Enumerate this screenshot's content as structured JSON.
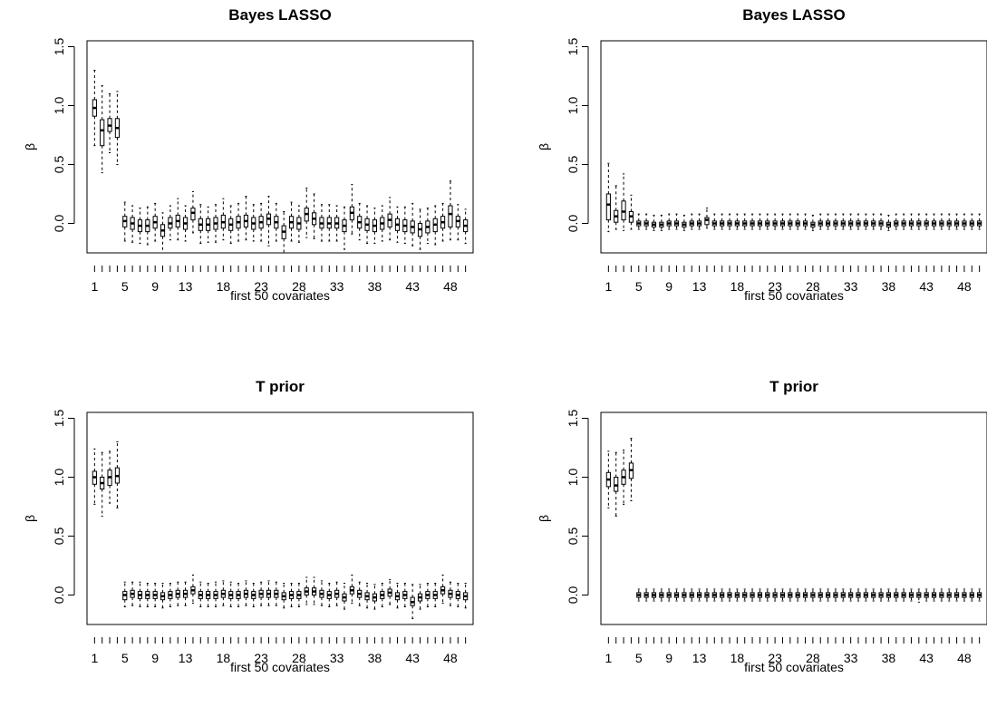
{
  "chart_data": [
    {
      "type": "box",
      "title": "Bayes LASSO",
      "xlabel": "first 50 covariates",
      "ylabel": "β",
      "xlim": [
        0,
        51
      ],
      "ylim": [
        -0.25,
        1.55
      ],
      "yticks": [
        "0.0",
        "0.5",
        "1.0",
        "1.5"
      ],
      "xtick_labels": [
        "1",
        "5",
        "9",
        "13",
        "18",
        "23",
        "28",
        "33",
        "38",
        "43",
        "48"
      ],
      "box_width": 0.5,
      "x": [
        1,
        2,
        3,
        4,
        5,
        6,
        7,
        8,
        9,
        10,
        11,
        12,
        13,
        14,
        15,
        16,
        17,
        18,
        19,
        20,
        21,
        22,
        23,
        24,
        25,
        26,
        27,
        28,
        29,
        30,
        31,
        32,
        33,
        34,
        35,
        36,
        37,
        38,
        39,
        40,
        41,
        42,
        43,
        44,
        45,
        46,
        47,
        48,
        49,
        50
      ],
      "q1": [
        0.91,
        0.66,
        0.78,
        0.73,
        -0.03,
        -0.05,
        -0.07,
        -0.07,
        -0.04,
        -0.11,
        -0.04,
        -0.03,
        -0.05,
        0.03,
        -0.06,
        -0.06,
        -0.05,
        -0.04,
        -0.06,
        -0.04,
        -0.03,
        -0.05,
        -0.04,
        -0.01,
        -0.04,
        -0.13,
        -0.04,
        -0.05,
        0.02,
        -0.01,
        -0.04,
        -0.04,
        -0.04,
        -0.07,
        0.03,
        -0.04,
        -0.06,
        -0.07,
        -0.05,
        -0.03,
        -0.06,
        -0.07,
        -0.08,
        -0.11,
        -0.08,
        -0.07,
        -0.04,
        -0.03,
        -0.03,
        -0.07
      ],
      "median": [
        0.98,
        0.79,
        0.83,
        0.81,
        0.02,
        0.0,
        -0.02,
        -0.02,
        0.01,
        -0.06,
        0.0,
        0.02,
        0.0,
        0.09,
        -0.01,
        -0.01,
        0.0,
        0.01,
        -0.01,
        0.01,
        0.02,
        0.0,
        0.01,
        0.04,
        0.01,
        -0.07,
        0.01,
        0.0,
        0.08,
        0.04,
        0.0,
        0.0,
        0.0,
        -0.02,
        0.09,
        0.01,
        -0.01,
        -0.02,
        0.0,
        0.03,
        -0.01,
        -0.02,
        -0.03,
        -0.05,
        -0.03,
        -0.01,
        0.01,
        0.08,
        0.02,
        -0.02
      ],
      "q3": [
        1.05,
        0.88,
        0.89,
        0.89,
        0.06,
        0.05,
        0.03,
        0.03,
        0.06,
        -0.01,
        0.05,
        0.07,
        0.05,
        0.13,
        0.04,
        0.04,
        0.05,
        0.07,
        0.04,
        0.06,
        0.07,
        0.05,
        0.06,
        0.08,
        0.06,
        -0.02,
        0.06,
        0.05,
        0.13,
        0.09,
        0.05,
        0.05,
        0.05,
        0.03,
        0.14,
        0.06,
        0.04,
        0.03,
        0.05,
        0.08,
        0.04,
        0.03,
        0.02,
        0.0,
        0.02,
        0.04,
        0.06,
        0.15,
        0.06,
        0.03
      ],
      "wlo": [
        0.66,
        0.43,
        0.6,
        0.5,
        -0.15,
        -0.16,
        -0.17,
        -0.18,
        -0.15,
        -0.27,
        -0.14,
        -0.14,
        -0.15,
        -0.08,
        -0.17,
        -0.16,
        -0.16,
        -0.14,
        -0.17,
        -0.15,
        -0.14,
        -0.15,
        -0.15,
        -0.19,
        -0.15,
        -0.25,
        -0.15,
        -0.16,
        -0.12,
        -0.13,
        -0.15,
        -0.15,
        -0.15,
        -0.22,
        -0.09,
        -0.14,
        -0.17,
        -0.17,
        -0.15,
        -0.14,
        -0.16,
        -0.17,
        -0.19,
        -0.22,
        -0.17,
        -0.18,
        -0.15,
        -0.14,
        -0.14,
        -0.17
      ],
      "whi": [
        1.3,
        1.17,
        1.1,
        1.12,
        0.18,
        0.15,
        0.13,
        0.14,
        0.17,
        0.09,
        0.15,
        0.21,
        0.15,
        0.27,
        0.16,
        0.14,
        0.16,
        0.21,
        0.15,
        0.17,
        0.23,
        0.16,
        0.17,
        0.23,
        0.17,
        0.1,
        0.18,
        0.15,
        0.3,
        0.25,
        0.16,
        0.16,
        0.15,
        0.14,
        0.33,
        0.17,
        0.15,
        0.13,
        0.15,
        0.22,
        0.14,
        0.14,
        0.17,
        0.12,
        0.13,
        0.15,
        0.17,
        0.36,
        0.16,
        0.12
      ]
    },
    {
      "type": "box",
      "title": "Bayes LASSO",
      "xlabel": "first 50 covariates",
      "ylabel": "β",
      "xlim": [
        0,
        51
      ],
      "ylim": [
        -0.25,
        1.55
      ],
      "yticks": [
        "0.0",
        "0.5",
        "1.0",
        "1.5"
      ],
      "xtick_labels": [
        "1",
        "5",
        "9",
        "13",
        "18",
        "23",
        "28",
        "33",
        "38",
        "43",
        "48"
      ],
      "box_width": 0.5,
      "x": [
        1,
        2,
        3,
        4,
        5,
        6,
        7,
        8,
        9,
        10,
        11,
        12,
        13,
        14,
        15,
        16,
        17,
        18,
        19,
        20,
        21,
        22,
        23,
        24,
        25,
        26,
        27,
        28,
        29,
        30,
        31,
        32,
        33,
        34,
        35,
        36,
        37,
        38,
        39,
        40,
        41,
        42,
        43,
        44,
        45,
        46,
        47,
        48,
        49,
        50
      ],
      "q1": [
        0.03,
        0.01,
        0.03,
        0.01,
        -0.02,
        -0.02,
        -0.03,
        -0.03,
        -0.02,
        -0.02,
        -0.03,
        -0.02,
        -0.02,
        -0.01,
        -0.02,
        -0.02,
        -0.02,
        -0.02,
        -0.02,
        -0.02,
        -0.02,
        -0.02,
        -0.02,
        -0.02,
        -0.02,
        -0.02,
        -0.02,
        -0.03,
        -0.02,
        -0.02,
        -0.02,
        -0.02,
        -0.02,
        -0.02,
        -0.02,
        -0.02,
        -0.02,
        -0.03,
        -0.02,
        -0.02,
        -0.02,
        -0.02,
        -0.02,
        -0.02,
        -0.02,
        -0.02,
        -0.02,
        -0.02,
        -0.02,
        -0.02
      ],
      "median": [
        0.16,
        0.06,
        0.1,
        0.06,
        0.0,
        0.0,
        -0.01,
        -0.01,
        0.0,
        0.0,
        -0.01,
        0.0,
        0.0,
        0.03,
        0.0,
        0.0,
        0.0,
        0.0,
        0.0,
        0.0,
        0.0,
        0.0,
        0.0,
        0.0,
        0.0,
        0.0,
        0.0,
        -0.01,
        0.0,
        0.0,
        0.0,
        0.0,
        0.0,
        0.0,
        0.0,
        0.0,
        0.0,
        -0.01,
        0.0,
        0.0,
        0.0,
        0.0,
        0.0,
        0.0,
        0.0,
        0.0,
        0.0,
        0.0,
        0.0,
        0.0
      ],
      "q3": [
        0.25,
        0.11,
        0.19,
        0.1,
        0.02,
        0.02,
        0.01,
        0.01,
        0.02,
        0.02,
        0.01,
        0.02,
        0.02,
        0.05,
        0.02,
        0.02,
        0.02,
        0.02,
        0.02,
        0.02,
        0.02,
        0.02,
        0.02,
        0.02,
        0.02,
        0.02,
        0.02,
        0.01,
        0.02,
        0.02,
        0.02,
        0.02,
        0.02,
        0.02,
        0.02,
        0.02,
        0.02,
        0.01,
        0.02,
        0.02,
        0.02,
        0.02,
        0.02,
        0.02,
        0.02,
        0.02,
        0.02,
        0.02,
        0.02,
        0.02
      ],
      "wlo": [
        -0.07,
        -0.05,
        -0.06,
        -0.05,
        -0.05,
        -0.05,
        -0.06,
        -0.06,
        -0.05,
        -0.05,
        -0.06,
        -0.05,
        -0.05,
        -0.04,
        -0.05,
        -0.05,
        -0.05,
        -0.05,
        -0.05,
        -0.05,
        -0.05,
        -0.05,
        -0.05,
        -0.05,
        -0.05,
        -0.05,
        -0.05,
        -0.06,
        -0.05,
        -0.05,
        -0.05,
        -0.05,
        -0.05,
        -0.05,
        -0.05,
        -0.05,
        -0.05,
        -0.06,
        -0.05,
        -0.05,
        -0.05,
        -0.05,
        -0.05,
        -0.05,
        -0.05,
        -0.05,
        -0.05,
        -0.05,
        -0.05,
        -0.05
      ],
      "whi": [
        0.51,
        0.32,
        0.42,
        0.24,
        0.08,
        0.08,
        0.07,
        0.07,
        0.08,
        0.08,
        0.07,
        0.08,
        0.08,
        0.13,
        0.08,
        0.08,
        0.08,
        0.08,
        0.08,
        0.08,
        0.08,
        0.08,
        0.08,
        0.08,
        0.08,
        0.08,
        0.08,
        0.07,
        0.08,
        0.08,
        0.08,
        0.08,
        0.08,
        0.08,
        0.08,
        0.08,
        0.08,
        0.07,
        0.08,
        0.08,
        0.08,
        0.08,
        0.08,
        0.08,
        0.08,
        0.08,
        0.08,
        0.08,
        0.08,
        0.08
      ]
    },
    {
      "type": "box",
      "title": "T prior",
      "xlabel": "first 50 covariates",
      "ylabel": "β",
      "xlim": [
        0,
        51
      ],
      "ylim": [
        -0.25,
        1.55
      ],
      "yticks": [
        "0.0",
        "0.5",
        "1.0",
        "1.5"
      ],
      "xtick_labels": [
        "1",
        "5",
        "9",
        "13",
        "18",
        "23",
        "28",
        "33",
        "38",
        "43",
        "48"
      ],
      "box_width": 0.5,
      "x": [
        1,
        2,
        3,
        4,
        5,
        6,
        7,
        8,
        9,
        10,
        11,
        12,
        13,
        14,
        15,
        16,
        17,
        18,
        19,
        20,
        21,
        22,
        23,
        24,
        25,
        26,
        27,
        28,
        29,
        30,
        31,
        32,
        33,
        34,
        35,
        36,
        37,
        38,
        39,
        40,
        41,
        42,
        43,
        44,
        45,
        46,
        47,
        48,
        49,
        50
      ],
      "q1": [
        0.94,
        0.9,
        0.93,
        0.95,
        -0.04,
        -0.02,
        -0.03,
        -0.03,
        -0.03,
        -0.04,
        -0.03,
        -0.02,
        -0.02,
        0.01,
        -0.03,
        -0.03,
        -0.03,
        -0.02,
        -0.03,
        -0.03,
        -0.02,
        -0.03,
        -0.02,
        -0.02,
        -0.02,
        -0.04,
        -0.03,
        -0.03,
        0.0,
        0.0,
        -0.02,
        -0.03,
        -0.02,
        -0.05,
        0.01,
        -0.02,
        -0.04,
        -0.05,
        -0.03,
        -0.01,
        -0.04,
        -0.03,
        -0.09,
        -0.05,
        -0.03,
        -0.03,
        0.01,
        -0.02,
        -0.03,
        -0.04
      ],
      "median": [
        1.0,
        0.95,
        1.0,
        1.01,
        0.0,
        0.01,
        0.0,
        0.0,
        0.0,
        -0.01,
        0.0,
        0.01,
        0.01,
        0.04,
        0.0,
        0.0,
        0.0,
        0.01,
        0.0,
        0.0,
        0.01,
        0.0,
        0.01,
        0.01,
        0.01,
        -0.01,
        0.0,
        0.0,
        0.03,
        0.03,
        0.01,
        0.0,
        0.01,
        -0.02,
        0.04,
        0.01,
        -0.01,
        -0.02,
        0.0,
        0.02,
        -0.01,
        0.0,
        -0.06,
        -0.02,
        0.0,
        0.0,
        0.04,
        0.01,
        0.0,
        -0.01
      ],
      "q3": [
        1.05,
        1.0,
        1.06,
        1.08,
        0.03,
        0.04,
        0.03,
        0.03,
        0.03,
        0.02,
        0.03,
        0.04,
        0.04,
        0.07,
        0.03,
        0.03,
        0.03,
        0.04,
        0.03,
        0.03,
        0.04,
        0.03,
        0.04,
        0.04,
        0.04,
        0.02,
        0.03,
        0.03,
        0.06,
        0.06,
        0.04,
        0.03,
        0.04,
        0.01,
        0.07,
        0.04,
        0.02,
        0.01,
        0.03,
        0.05,
        0.02,
        0.03,
        -0.02,
        0.01,
        0.03,
        0.03,
        0.07,
        0.04,
        0.03,
        0.02
      ],
      "wlo": [
        0.77,
        0.67,
        0.78,
        0.74,
        -0.1,
        -0.09,
        -0.1,
        -0.1,
        -0.1,
        -0.11,
        -0.1,
        -0.09,
        -0.09,
        -0.07,
        -0.1,
        -0.1,
        -0.1,
        -0.09,
        -0.1,
        -0.1,
        -0.09,
        -0.1,
        -0.09,
        -0.09,
        -0.09,
        -0.11,
        -0.1,
        -0.1,
        -0.08,
        -0.08,
        -0.09,
        -0.1,
        -0.09,
        -0.12,
        -0.07,
        -0.09,
        -0.11,
        -0.12,
        -0.1,
        -0.08,
        -0.11,
        -0.1,
        -0.2,
        -0.12,
        -0.1,
        -0.1,
        -0.07,
        -0.09,
        -0.1,
        -0.11
      ],
      "whi": [
        1.24,
        1.21,
        1.22,
        1.3,
        0.11,
        0.11,
        0.11,
        0.1,
        0.1,
        0.1,
        0.1,
        0.11,
        0.11,
        0.17,
        0.11,
        0.1,
        0.11,
        0.12,
        0.11,
        0.1,
        0.12,
        0.1,
        0.11,
        0.12,
        0.11,
        0.1,
        0.1,
        0.1,
        0.15,
        0.15,
        0.12,
        0.1,
        0.11,
        0.1,
        0.17,
        0.11,
        0.1,
        0.09,
        0.1,
        0.13,
        0.1,
        0.1,
        0.09,
        0.09,
        0.1,
        0.1,
        0.17,
        0.11,
        0.1,
        0.1
      ]
    },
    {
      "type": "box",
      "title": "T prior",
      "xlabel": "first 50 covariates",
      "ylabel": "β",
      "xlim": [
        0,
        51
      ],
      "ylim": [
        -0.25,
        1.55
      ],
      "yticks": [
        "0.0",
        "0.5",
        "1.0",
        "1.5"
      ],
      "xtick_labels": [
        "1",
        "5",
        "9",
        "13",
        "18",
        "23",
        "28",
        "33",
        "38",
        "43",
        "48"
      ],
      "box_width": 0.5,
      "x": [
        1,
        2,
        3,
        4,
        5,
        6,
        7,
        8,
        9,
        10,
        11,
        12,
        13,
        14,
        15,
        16,
        17,
        18,
        19,
        20,
        21,
        22,
        23,
        24,
        25,
        26,
        27,
        28,
        29,
        30,
        31,
        32,
        33,
        34,
        35,
        36,
        37,
        38,
        39,
        40,
        41,
        42,
        43,
        44,
        45,
        46,
        47,
        48,
        49,
        50
      ],
      "q1": [
        0.92,
        0.88,
        0.94,
        0.99,
        -0.02,
        -0.02,
        -0.02,
        -0.02,
        -0.02,
        -0.02,
        -0.02,
        -0.02,
        -0.02,
        -0.02,
        -0.02,
        -0.02,
        -0.02,
        -0.02,
        -0.02,
        -0.02,
        -0.02,
        -0.02,
        -0.02,
        -0.02,
        -0.02,
        -0.02,
        -0.02,
        -0.02,
        -0.02,
        -0.02,
        -0.02,
        -0.02,
        -0.02,
        -0.02,
        -0.02,
        -0.02,
        -0.02,
        -0.02,
        -0.02,
        -0.02,
        -0.02,
        -0.02,
        -0.02,
        -0.02,
        -0.02,
        -0.02,
        -0.02,
        -0.02,
        -0.02,
        -0.02
      ],
      "median": [
        0.98,
        0.93,
        1.0,
        1.06,
        0.0,
        0.0,
        0.0,
        0.0,
        0.0,
        0.0,
        0.0,
        0.0,
        0.0,
        0.0,
        0.0,
        0.0,
        0.0,
        0.0,
        0.0,
        0.0,
        0.0,
        0.0,
        0.0,
        0.0,
        0.0,
        0.0,
        0.0,
        0.0,
        0.0,
        0.0,
        0.0,
        0.0,
        0.0,
        0.0,
        0.0,
        0.0,
        0.0,
        0.0,
        0.0,
        0.0,
        0.0,
        0.0,
        0.0,
        0.0,
        0.0,
        0.0,
        0.0,
        0.0,
        0.0,
        0.0
      ],
      "q3": [
        1.04,
        1.0,
        1.06,
        1.12,
        0.02,
        0.02,
        0.02,
        0.02,
        0.02,
        0.02,
        0.02,
        0.02,
        0.02,
        0.02,
        0.02,
        0.02,
        0.02,
        0.02,
        0.02,
        0.02,
        0.02,
        0.02,
        0.02,
        0.02,
        0.02,
        0.02,
        0.02,
        0.02,
        0.02,
        0.02,
        0.02,
        0.02,
        0.02,
        0.02,
        0.02,
        0.02,
        0.02,
        0.02,
        0.02,
        0.02,
        0.02,
        0.02,
        0.02,
        0.02,
        0.02,
        0.02,
        0.02,
        0.02,
        0.02,
        0.02
      ],
      "wlo": [
        0.74,
        0.67,
        0.77,
        0.8,
        -0.05,
        -0.05,
        -0.05,
        -0.05,
        -0.05,
        -0.05,
        -0.05,
        -0.05,
        -0.05,
        -0.05,
        -0.05,
        -0.05,
        -0.05,
        -0.05,
        -0.05,
        -0.05,
        -0.05,
        -0.05,
        -0.05,
        -0.05,
        -0.05,
        -0.05,
        -0.05,
        -0.05,
        -0.05,
        -0.05,
        -0.05,
        -0.05,
        -0.05,
        -0.05,
        -0.05,
        -0.05,
        -0.05,
        -0.05,
        -0.05,
        -0.05,
        -0.05,
        -0.06,
        -0.05,
        -0.05,
        -0.05,
        -0.05,
        -0.05,
        -0.05,
        -0.05,
        -0.05
      ],
      "whi": [
        1.22,
        1.21,
        1.23,
        1.33,
        0.05,
        0.05,
        0.05,
        0.05,
        0.05,
        0.05,
        0.05,
        0.05,
        0.05,
        0.05,
        0.05,
        0.05,
        0.05,
        0.05,
        0.05,
        0.05,
        0.05,
        0.05,
        0.05,
        0.05,
        0.05,
        0.05,
        0.05,
        0.05,
        0.05,
        0.05,
        0.05,
        0.05,
        0.05,
        0.05,
        0.05,
        0.05,
        0.05,
        0.05,
        0.05,
        0.05,
        0.05,
        0.05,
        0.05,
        0.05,
        0.05,
        0.05,
        0.05,
        0.05,
        0.05,
        0.05
      ]
    }
  ]
}
